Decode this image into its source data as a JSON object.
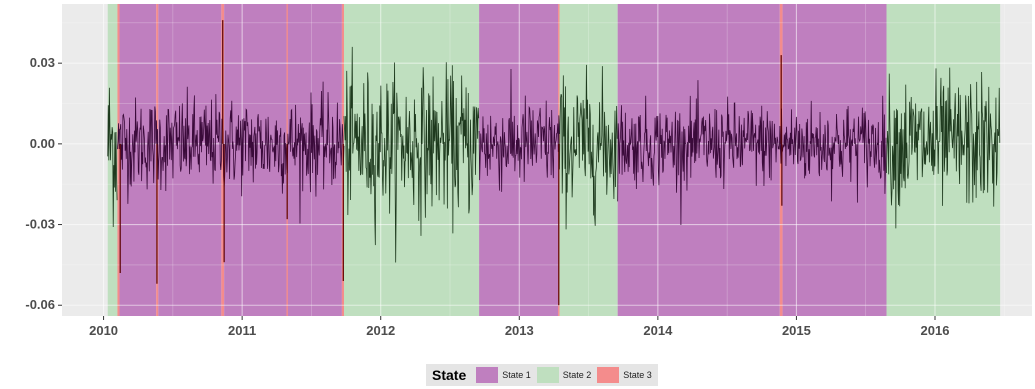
{
  "chart_data": {
    "type": "line",
    "title": "",
    "xlabel": "",
    "ylabel": "",
    "x_ticks": [
      "2010",
      "2011",
      "2012",
      "2013",
      "2014",
      "2015",
      "2016"
    ],
    "y_ticks": [
      {
        "value": 0.03,
        "label": "0.03"
      },
      {
        "value": 0.0,
        "label": "0.00"
      },
      {
        "value": -0.03,
        "label": "-0.03"
      },
      {
        "value": -0.06,
        "label": "-0.06"
      }
    ],
    "xlim": [
      2009.7,
      2016.7
    ],
    "ylim": [
      -0.064,
      0.052
    ],
    "grid": true,
    "legend": {
      "title": "State",
      "placement": "bottom",
      "entries": [
        {
          "name": "State 1",
          "color": "#bf7fbf"
        },
        {
          "name": "State 2",
          "color": "#bfdfbf"
        },
        {
          "name": "State 3",
          "color": "#f48c8c"
        }
      ]
    },
    "state_colors": {
      "State 1": "#bf7fbf",
      "State 2": "#bfdfbf",
      "State 3": "#f48c8c"
    },
    "line_colors": {
      "State 1": "#3a0a3a",
      "State 2": "#1e3a1e",
      "State 3": "#5a0000"
    },
    "regimes": [
      {
        "state": "State 2",
        "start": 2010.03,
        "end": 2010.1
      },
      {
        "state": "State 3",
        "start": 2010.1,
        "end": 2010.115
      },
      {
        "state": "State 1",
        "start": 2010.115,
        "end": 2010.38
      },
      {
        "state": "State 3",
        "start": 2010.38,
        "end": 2010.395
      },
      {
        "state": "State 1",
        "start": 2010.395,
        "end": 2010.85
      },
      {
        "state": "State 3",
        "start": 2010.85,
        "end": 2010.87
      },
      {
        "state": "State 1",
        "start": 2010.87,
        "end": 2011.32
      },
      {
        "state": "State 3",
        "start": 2011.32,
        "end": 2011.33
      },
      {
        "state": "State 1",
        "start": 2011.33,
        "end": 2011.72
      },
      {
        "state": "State 3",
        "start": 2011.72,
        "end": 2011.735
      },
      {
        "state": "State 2",
        "start": 2011.735,
        "end": 2012.71
      },
      {
        "state": "State 1",
        "start": 2012.71,
        "end": 2013.28
      },
      {
        "state": "State 3",
        "start": 2013.28,
        "end": 2013.29
      },
      {
        "state": "State 2",
        "start": 2013.29,
        "end": 2013.71
      },
      {
        "state": "State 1",
        "start": 2013.71,
        "end": 2014.88
      },
      {
        "state": "State 3",
        "start": 2014.88,
        "end": 2014.9
      },
      {
        "state": "State 1",
        "start": 2014.9,
        "end": 2015.65
      },
      {
        "state": "State 2",
        "start": 2015.65,
        "end": 2016.47
      }
    ],
    "series": [
      {
        "start": 2010.03,
        "end": 2010.1,
        "sd": 0.015,
        "state": "State 2"
      },
      {
        "start": 2010.1,
        "end": 2011.735,
        "sd": 0.0085,
        "state": "State 1"
      },
      {
        "start": 2011.735,
        "end": 2012.71,
        "sd": 0.013,
        "state": "State 2"
      },
      {
        "start": 2012.71,
        "end": 2013.29,
        "sd": 0.0085,
        "state": "State 1"
      },
      {
        "start": 2013.29,
        "end": 2013.71,
        "sd": 0.012,
        "state": "State 2"
      },
      {
        "start": 2013.71,
        "end": 2015.65,
        "sd": 0.0075,
        "state": "State 1"
      },
      {
        "start": 2015.65,
        "end": 2016.47,
        "sd": 0.012,
        "state": "State 2"
      }
    ],
    "spikes": [
      {
        "x": 2010.12,
        "y": -0.048
      },
      {
        "x": 2010.385,
        "y": -0.052
      },
      {
        "x": 2010.86,
        "y": 0.046
      },
      {
        "x": 2010.87,
        "y": -0.044
      },
      {
        "x": 2011.325,
        "y": -0.028
      },
      {
        "x": 2011.73,
        "y": -0.051
      },
      {
        "x": 2013.285,
        "y": -0.06
      },
      {
        "x": 2014.89,
        "y": 0.033
      },
      {
        "x": 2014.895,
        "y": -0.023
      }
    ]
  }
}
